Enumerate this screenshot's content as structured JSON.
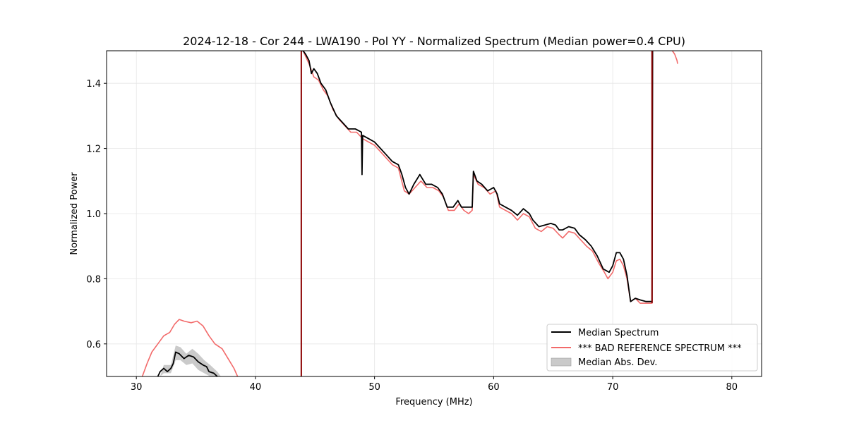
{
  "chart_data": {
    "type": "line",
    "title": "2024-12-18 - Cor 244 - LWA190 - Pol YY - Normalized Spectrum (Median power=0.4 CPU)",
    "xlabel": "Frequency (MHz)",
    "ylabel": "Normalized Power",
    "xlim": [
      27.5,
      82.5
    ],
    "ylim": [
      0.5,
      1.5
    ],
    "xticks": [
      30,
      40,
      50,
      60,
      70,
      80
    ],
    "yticks": [
      0.6,
      0.8,
      1.0,
      1.2,
      1.4
    ],
    "grid": true,
    "legend_position": "lower-right",
    "series": [
      {
        "name": "Median Spectrum",
        "color": "#000000",
        "segments": [
          [
            [
              31.8,
              0.5
            ],
            [
              32.0,
              0.515
            ],
            [
              32.3,
              0.525
            ],
            [
              32.6,
              0.515
            ],
            [
              32.9,
              0.525
            ],
            [
              33.1,
              0.54
            ],
            [
              33.3,
              0.575
            ],
            [
              33.6,
              0.57
            ],
            [
              34.0,
              0.555
            ],
            [
              34.4,
              0.565
            ],
            [
              34.8,
              0.56
            ],
            [
              35.2,
              0.545
            ],
            [
              35.6,
              0.535
            ],
            [
              35.9,
              0.53
            ],
            [
              36.1,
              0.515
            ],
            [
              36.5,
              0.51
            ],
            [
              36.8,
              0.5
            ]
          ],
          [
            [
              43.9,
              1.5
            ],
            [
              44.0,
              1.5
            ],
            [
              44.2,
              1.49
            ],
            [
              44.5,
              1.47
            ],
            [
              44.7,
              1.43
            ],
            [
              44.9,
              1.445
            ],
            [
              45.2,
              1.43
            ],
            [
              45.5,
              1.4
            ],
            [
              45.9,
              1.38
            ],
            [
              46.3,
              1.34
            ],
            [
              46.8,
              1.3
            ],
            [
              47.3,
              1.28
            ],
            [
              47.8,
              1.26
            ],
            [
              48.4,
              1.26
            ],
            [
              48.9,
              1.25
            ],
            [
              48.95,
              1.12
            ],
            [
              49.0,
              1.24
            ],
            [
              49.5,
              1.23
            ],
            [
              50.0,
              1.22
            ],
            [
              50.5,
              1.2
            ],
            [
              51.0,
              1.18
            ],
            [
              51.5,
              1.16
            ],
            [
              52.0,
              1.15
            ],
            [
              52.3,
              1.12
            ],
            [
              52.6,
              1.08
            ],
            [
              52.9,
              1.06
            ],
            [
              53.3,
              1.09
            ],
            [
              53.8,
              1.12
            ],
            [
              54.3,
              1.09
            ],
            [
              54.8,
              1.09
            ],
            [
              55.3,
              1.08
            ],
            [
              55.7,
              1.06
            ],
            [
              56.1,
              1.02
            ],
            [
              56.6,
              1.02
            ],
            [
              57.0,
              1.04
            ],
            [
              57.3,
              1.02
            ],
            [
              57.8,
              1.02
            ],
            [
              58.2,
              1.02
            ],
            [
              58.3,
              1.13
            ],
            [
              58.6,
              1.1
            ],
            [
              59.0,
              1.09
            ],
            [
              59.5,
              1.07
            ],
            [
              60.0,
              1.08
            ],
            [
              60.3,
              1.06
            ],
            [
              60.5,
              1.03
            ],
            [
              61.0,
              1.02
            ],
            [
              61.5,
              1.01
            ],
            [
              62.0,
              0.995
            ],
            [
              62.5,
              1.015
            ],
            [
              63.0,
              1.0
            ],
            [
              63.3,
              0.98
            ],
            [
              63.8,
              0.96
            ],
            [
              64.3,
              0.965
            ],
            [
              64.8,
              0.97
            ],
            [
              65.2,
              0.965
            ],
            [
              65.5,
              0.95
            ],
            [
              65.8,
              0.95
            ],
            [
              66.3,
              0.96
            ],
            [
              66.8,
              0.955
            ],
            [
              67.2,
              0.935
            ],
            [
              67.7,
              0.92
            ],
            [
              68.2,
              0.9
            ],
            [
              68.7,
              0.87
            ],
            [
              69.2,
              0.83
            ],
            [
              69.7,
              0.82
            ],
            [
              70.0,
              0.84
            ],
            [
              70.3,
              0.88
            ],
            [
              70.6,
              0.88
            ],
            [
              70.9,
              0.86
            ],
            [
              71.2,
              0.81
            ],
            [
              71.5,
              0.73
            ],
            [
              71.9,
              0.74
            ],
            [
              72.3,
              0.735
            ],
            [
              72.8,
              0.73
            ],
            [
              73.3,
              0.73
            ],
            [
              73.35,
              1.5
            ]
          ]
        ]
      },
      {
        "name": "*** BAD REFERENCE SPECTRUM ***",
        "color": "#f26a6a",
        "segments": [
          [
            [
              30.5,
              0.5
            ],
            [
              30.9,
              0.54
            ],
            [
              31.3,
              0.575
            ],
            [
              31.8,
              0.6
            ],
            [
              32.3,
              0.625
            ],
            [
              32.8,
              0.635
            ],
            [
              33.2,
              0.66
            ],
            [
              33.6,
              0.675
            ],
            [
              34.0,
              0.67
            ],
            [
              34.6,
              0.665
            ],
            [
              35.1,
              0.67
            ],
            [
              35.6,
              0.655
            ],
            [
              36.1,
              0.625
            ],
            [
              36.6,
              0.6
            ],
            [
              37.2,
              0.585
            ],
            [
              37.7,
              0.555
            ],
            [
              38.2,
              0.525
            ],
            [
              38.5,
              0.5
            ]
          ],
          [
            [
              44.0,
              1.5
            ],
            [
              44.5,
              1.46
            ],
            [
              44.9,
              1.42
            ],
            [
              45.3,
              1.41
            ],
            [
              45.7,
              1.38
            ],
            [
              46.1,
              1.36
            ],
            [
              46.5,
              1.32
            ],
            [
              47.0,
              1.29
            ],
            [
              47.5,
              1.27
            ],
            [
              48.0,
              1.25
            ],
            [
              48.5,
              1.25
            ],
            [
              49.0,
              1.23
            ],
            [
              49.5,
              1.22
            ],
            [
              50.0,
              1.21
            ],
            [
              50.5,
              1.19
            ],
            [
              51.0,
              1.17
            ],
            [
              51.5,
              1.15
            ],
            [
              52.0,
              1.14
            ],
            [
              52.5,
              1.07
            ],
            [
              52.9,
              1.06
            ],
            [
              53.4,
              1.08
            ],
            [
              53.9,
              1.1
            ],
            [
              54.4,
              1.08
            ],
            [
              54.9,
              1.08
            ],
            [
              55.4,
              1.07
            ],
            [
              55.8,
              1.05
            ],
            [
              56.2,
              1.01
            ],
            [
              56.7,
              1.01
            ],
            [
              57.1,
              1.03
            ],
            [
              57.5,
              1.01
            ],
            [
              57.9,
              1.0
            ],
            [
              58.2,
              1.01
            ],
            [
              58.3,
              1.12
            ],
            [
              58.7,
              1.09
            ],
            [
              59.2,
              1.08
            ],
            [
              59.7,
              1.06
            ],
            [
              60.2,
              1.07
            ],
            [
              60.5,
              1.02
            ],
            [
              61.0,
              1.01
            ],
            [
              61.5,
              1.0
            ],
            [
              62.0,
              0.98
            ],
            [
              62.5,
              1.0
            ],
            [
              63.0,
              0.99
            ],
            [
              63.5,
              0.955
            ],
            [
              64.0,
              0.945
            ],
            [
              64.5,
              0.96
            ],
            [
              65.0,
              0.955
            ],
            [
              65.5,
              0.935
            ],
            [
              65.8,
              0.925
            ],
            [
              66.3,
              0.945
            ],
            [
              66.8,
              0.94
            ],
            [
              67.3,
              0.92
            ],
            [
              67.8,
              0.9
            ],
            [
              68.3,
              0.885
            ],
            [
              68.8,
              0.85
            ],
            [
              69.3,
              0.82
            ],
            [
              69.6,
              0.8
            ],
            [
              70.0,
              0.82
            ],
            [
              70.3,
              0.855
            ],
            [
              70.6,
              0.86
            ],
            [
              70.9,
              0.84
            ],
            [
              71.2,
              0.8
            ],
            [
              71.5,
              0.73
            ],
            [
              71.9,
              0.74
            ],
            [
              72.3,
              0.725
            ],
            [
              72.8,
              0.725
            ],
            [
              73.3,
              0.725
            ],
            [
              73.35,
              1.5
            ]
          ],
          [
            [
              75.0,
              1.5
            ],
            [
              75.2,
              1.49
            ],
            [
              75.4,
              1.47
            ],
            [
              75.45,
              1.46
            ]
          ]
        ]
      }
    ],
    "spikes": [
      {
        "x": 43.85,
        "y0": 0.5,
        "y1": 1.5,
        "color": "#8b0000"
      },
      {
        "x": 73.3,
        "y0": 0.725,
        "y1": 1.5,
        "color": "#8b0000"
      }
    ],
    "band": {
      "name": "Median Abs. Dev.",
      "color": "#b4b4b4",
      "upper": [
        [
          32.0,
          0.5
        ],
        [
          32.3,
          0.535
        ],
        [
          32.9,
          0.535
        ],
        [
          33.3,
          0.595
        ],
        [
          33.7,
          0.59
        ],
        [
          34.2,
          0.57
        ],
        [
          34.7,
          0.585
        ],
        [
          35.2,
          0.57
        ],
        [
          35.7,
          0.55
        ],
        [
          36.2,
          0.535
        ],
        [
          36.8,
          0.515
        ],
        [
          37.1,
          0.5
        ]
      ],
      "lower": [
        [
          32.0,
          0.5
        ],
        [
          32.3,
          0.51
        ],
        [
          32.9,
          0.51
        ],
        [
          33.3,
          0.55
        ],
        [
          33.7,
          0.55
        ],
        [
          34.2,
          0.535
        ],
        [
          34.7,
          0.54
        ],
        [
          35.2,
          0.52
        ],
        [
          35.7,
          0.51
        ],
        [
          36.2,
          0.5
        ],
        [
          36.8,
          0.5
        ],
        [
          37.1,
          0.5
        ]
      ]
    },
    "legend": [
      "Median Spectrum",
      "*** BAD REFERENCE SPECTRUM ***",
      "Median Abs. Dev."
    ]
  }
}
